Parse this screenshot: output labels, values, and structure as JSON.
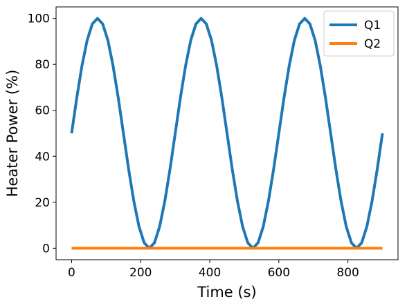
{
  "chart_data": {
    "type": "line",
    "title": "",
    "xlabel": "Time (s)",
    "ylabel": "Heater Power (%)",
    "xlim": [
      -45,
      945
    ],
    "ylim": [
      -5,
      105
    ],
    "grid": false,
    "legend_position": "top-right",
    "x_ticks": [
      0,
      200,
      400,
      600,
      800
    ],
    "y_ticks": [
      0,
      20,
      40,
      60,
      80,
      100
    ],
    "series": [
      {
        "name": "Q1",
        "color": "#1f77b4",
        "x": [
          0,
          15,
          30,
          45,
          60,
          75,
          90,
          105,
          120,
          135,
          150,
          165,
          180,
          195,
          210,
          225,
          240,
          255,
          270,
          285,
          300,
          315,
          330,
          345,
          360,
          375,
          390,
          405,
          420,
          435,
          450,
          465,
          480,
          495,
          510,
          525,
          540,
          555,
          570,
          585,
          600,
          615,
          630,
          645,
          660,
          675,
          690,
          705,
          720,
          735,
          750,
          765,
          780,
          795,
          810,
          825,
          840,
          855,
          870,
          885,
          900
        ],
        "y": [
          50,
          65.5,
          79.4,
          90.5,
          97.6,
          100,
          97.6,
          90.5,
          79.4,
          65.5,
          50,
          34.5,
          20.6,
          9.5,
          2.4,
          0,
          2.4,
          9.5,
          20.6,
          34.5,
          50,
          65.5,
          79.4,
          90.5,
          97.6,
          100,
          97.6,
          90.5,
          79.4,
          65.5,
          50,
          34.5,
          20.6,
          9.5,
          2.4,
          0,
          2.4,
          9.5,
          20.6,
          34.5,
          50,
          65.5,
          79.4,
          90.5,
          97.6,
          100,
          97.6,
          90.5,
          79.4,
          65.5,
          50,
          34.5,
          20.6,
          9.5,
          2.4,
          0,
          2.4,
          9.5,
          20.6,
          34.5,
          50
        ]
      },
      {
        "name": "Q2",
        "color": "#ff7f0e",
        "x": [
          0,
          900
        ],
        "y": [
          0,
          0
        ]
      }
    ]
  }
}
